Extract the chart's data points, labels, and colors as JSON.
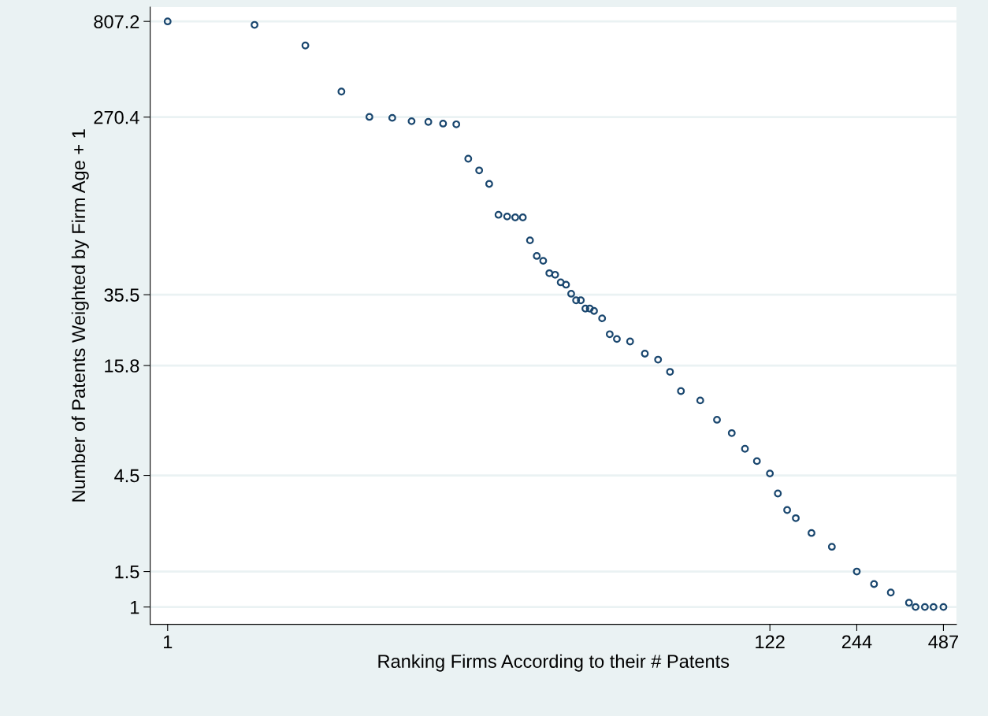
{
  "chart_data": {
    "type": "scatter",
    "xlabel": "Ranking Firms According to their # Patents",
    "ylabel": "Number of Patents Weighted by Firm Age + 1",
    "log": "xy",
    "grid": "y",
    "marker": "circle",
    "xlim": [
      0.87,
      540
    ],
    "xticks": [
      1,
      122,
      244,
      487
    ],
    "ylim": [
      0.82,
      950
    ],
    "yticks": [
      1,
      1.5,
      4.5,
      15.8,
      35.5,
      270.4,
      807.2
    ],
    "series": [
      {
        "color": "#1a476f",
        "x": [
          1,
          2,
          3,
          4,
          5,
          6,
          7,
          8,
          9,
          10,
          11,
          12,
          13,
          14,
          15,
          16,
          17,
          18,
          19,
          20,
          21,
          22,
          23,
          24,
          25,
          26,
          27,
          28,
          29,
          30,
          32,
          34,
          36,
          40,
          45,
          50,
          55,
          60,
          70,
          80,
          90,
          100,
          110,
          122,
          130,
          140,
          150,
          170,
          200,
          244,
          280,
          320,
          370,
          390,
          420,
          450,
          487
        ],
        "values": [
          807.2,
          776,
          613,
          362,
          271,
          268,
          258,
          256,
          251,
          249,
          168,
          147,
          126,
          88.5,
          86.8,
          85.9,
          85.9,
          66.1,
          55.3,
          52.3,
          45.4,
          44.6,
          40.9,
          39.8,
          35.9,
          33.3,
          33.3,
          30.3,
          30.3,
          29.5,
          27.1,
          22.6,
          21.4,
          20.8,
          18.1,
          16.9,
          14.7,
          11.8,
          10.6,
          8.5,
          7.3,
          6.1,
          5.3,
          4.6,
          3.66,
          3.03,
          2.76,
          2.33,
          1.99,
          1.5,
          1.3,
          1.18,
          1.05,
          1,
          1,
          1,
          1
        ]
      }
    ]
  }
}
